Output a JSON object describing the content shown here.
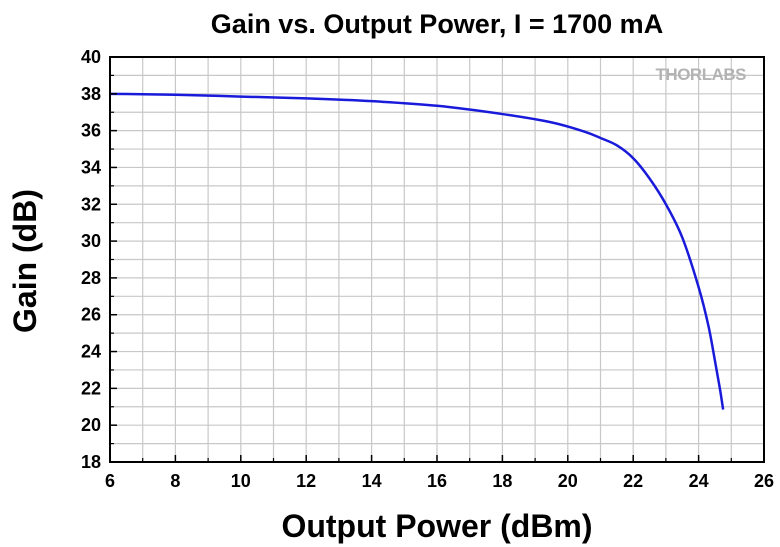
{
  "chart_data": {
    "type": "line",
    "title": "Gain vs. Output Power, I = 1700 mA",
    "xlabel": "Output Power (dBm)",
    "ylabel": "Gain (dB)",
    "xlim": [
      6,
      26
    ],
    "ylim": [
      18,
      40
    ],
    "xticks": [
      6,
      8,
      10,
      12,
      14,
      16,
      18,
      20,
      22,
      24,
      26
    ],
    "yticks": [
      18,
      20,
      22,
      24,
      26,
      28,
      30,
      32,
      34,
      36,
      38,
      40
    ],
    "grid": true,
    "logo": "THORLABS",
    "series": [
      {
        "color": "#1a1adb",
        "x": [
          6.0,
          8.0,
          10.0,
          12.0,
          14.0,
          16.0,
          18.0,
          19.5,
          20.5,
          21.0,
          21.5,
          22.0,
          22.5,
          23.0,
          23.5,
          24.0,
          24.3,
          24.5,
          24.65,
          24.75
        ],
        "y": [
          38.0,
          37.95,
          37.85,
          37.75,
          37.6,
          37.35,
          36.9,
          36.45,
          35.95,
          35.6,
          35.2,
          34.5,
          33.4,
          32.0,
          30.2,
          27.5,
          25.4,
          23.5,
          22.0,
          20.85
        ]
      }
    ]
  }
}
